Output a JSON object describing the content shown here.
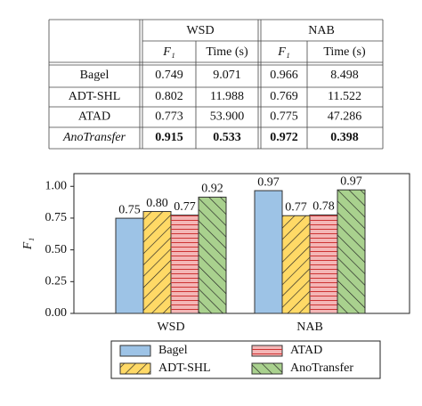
{
  "table": {
    "groups": [
      "WSD",
      "NAB"
    ],
    "columns": [
      "F₁",
      "Time (s)"
    ],
    "rows": [
      {
        "method": "Bagel",
        "cells": [
          "0.749",
          "9.071",
          "0.966",
          "8.498"
        ]
      },
      {
        "method": "ADT-SHL",
        "cells": [
          "0.802",
          "11.988",
          "0.769",
          "11.522"
        ]
      },
      {
        "method": "ATAD",
        "cells": [
          "0.773",
          "53.900",
          "0.775",
          "47.286"
        ]
      },
      {
        "method": "AnoTransfer",
        "cells": [
          "0.915",
          "0.533",
          "0.972",
          "0.398"
        ],
        "bold": true
      }
    ]
  },
  "chart_data": {
    "type": "bar",
    "y_label": "F₁",
    "categories": [
      "WSD",
      "NAB"
    ],
    "series": [
      {
        "name": "Bagel",
        "color": "#9dc3e6",
        "values": [
          0.749,
          0.966
        ],
        "value_labels": [
          "0.75",
          "0.97"
        ]
      },
      {
        "name": "ADT-SHL",
        "color": "#ffd966",
        "hatch": "/",
        "values": [
          0.802,
          0.769
        ],
        "value_labels": [
          "0.80",
          "0.77"
        ]
      },
      {
        "name": "ATAD",
        "color": "#f4b6b6",
        "hatch": "-",
        "values": [
          0.773,
          0.775
        ],
        "value_labels": [
          "0.77",
          "0.78"
        ]
      },
      {
        "name": "AnoTransfer",
        "color": "#a9d18e",
        "hatch": "\\",
        "values": [
          0.915,
          0.972
        ],
        "value_labels": [
          "0.92",
          "0.97"
        ]
      }
    ],
    "ylim": [
      0,
      1.1
    ],
    "yticks": [
      {
        "value": 0,
        "label": "0.00"
      },
      {
        "value": 0.25,
        "label": "0.25"
      },
      {
        "value": 0.5,
        "label": "0.50"
      },
      {
        "value": 0.75,
        "label": "0.75"
      },
      {
        "value": 1,
        "label": "1.00"
      }
    ],
    "legend": "lower center"
  }
}
